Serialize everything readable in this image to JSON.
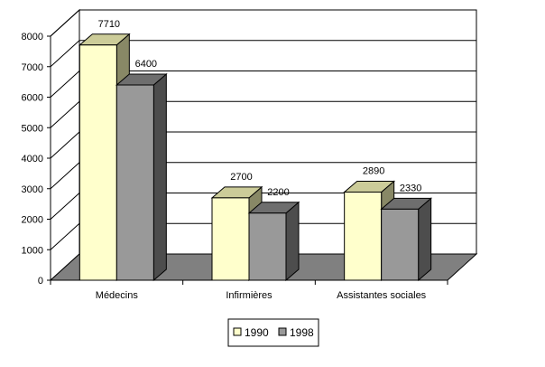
{
  "chart_data": {
    "type": "bar",
    "categories": [
      "Médecins",
      "Infirmières",
      "Assistantes sociales"
    ],
    "series": [
      {
        "name": "1990",
        "values": [
          7710,
          2700,
          2890
        ]
      },
      {
        "name": "1998",
        "values": [
          6400,
          2200,
          2330
        ]
      }
    ],
    "data_labels": [
      [
        "7710",
        "2700",
        "2890"
      ],
      [
        "6400",
        "2200",
        "2330"
      ]
    ],
    "y_ticks": [
      "0",
      "1000",
      "2000",
      "3000",
      "4000",
      "5000",
      "6000",
      "7000",
      "8000"
    ],
    "ylim": [
      0,
      8000
    ],
    "grid": true,
    "legend_position": "bottom",
    "three_d": true,
    "colors": {
      "series_front": [
        "#FFFFCC",
        "#999999"
      ],
      "series_top": [
        "#CCCC99",
        "#6E6E6E"
      ],
      "series_side": [
        "#888866",
        "#4D4D4D"
      ],
      "floor": "#808080",
      "wall": "#FFFFFF",
      "grid": "#000000"
    }
  }
}
